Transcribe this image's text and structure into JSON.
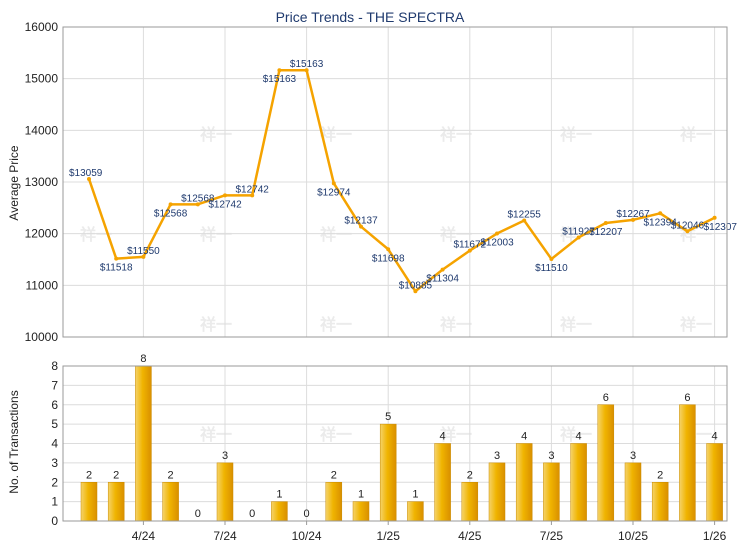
{
  "chart_data": [
    {
      "type": "line",
      "title": "Price Trends - THE SPECTRA",
      "ylabel": "Average Price",
      "ylim": [
        10000,
        16000
      ],
      "yticks": [
        10000,
        11000,
        12000,
        13000,
        14000,
        15000,
        16000
      ],
      "grid": true,
      "color": "#f5a300",
      "series": [
        {
          "values": [
            13059,
            11518,
            11550,
            12568,
            12568,
            12742,
            12742,
            15163,
            15163,
            12974,
            12137,
            11698,
            10885,
            11304,
            11672,
            12003,
            12255,
            11510,
            11927,
            12207,
            12267,
            12394,
            12046,
            12307
          ]
        }
      ],
      "value_labels": [
        "$13059",
        "$11518",
        "$11550",
        "$12568",
        "$12568",
        "$12742",
        "$12742",
        "$15163",
        "$15163",
        "$12974",
        "$12137",
        "$11698",
        "$10885",
        "$11304",
        "$11672",
        "$12003",
        "$12255",
        "$11510",
        "$11927",
        "$12207",
        "$12267",
        "$12394",
        "$12046",
        "$12307"
      ]
    },
    {
      "type": "bar",
      "ylabel": "No. of Transactions",
      "ylim": [
        0,
        8
      ],
      "yticks": [
        0,
        1,
        2,
        3,
        4,
        5,
        6,
        7,
        8
      ],
      "grid": true,
      "color": "#f0b400",
      "x_tick_labels": [
        "4/24",
        "7/24",
        "10/24",
        "1/25",
        "4/25",
        "7/25",
        "10/25",
        "1/26"
      ],
      "values": [
        2,
        2,
        8,
        2,
        0,
        3,
        0,
        1,
        0,
        2,
        1,
        5,
        1,
        4,
        2,
        3,
        4,
        3,
        4,
        6,
        3,
        2,
        6,
        4
      ]
    }
  ]
}
